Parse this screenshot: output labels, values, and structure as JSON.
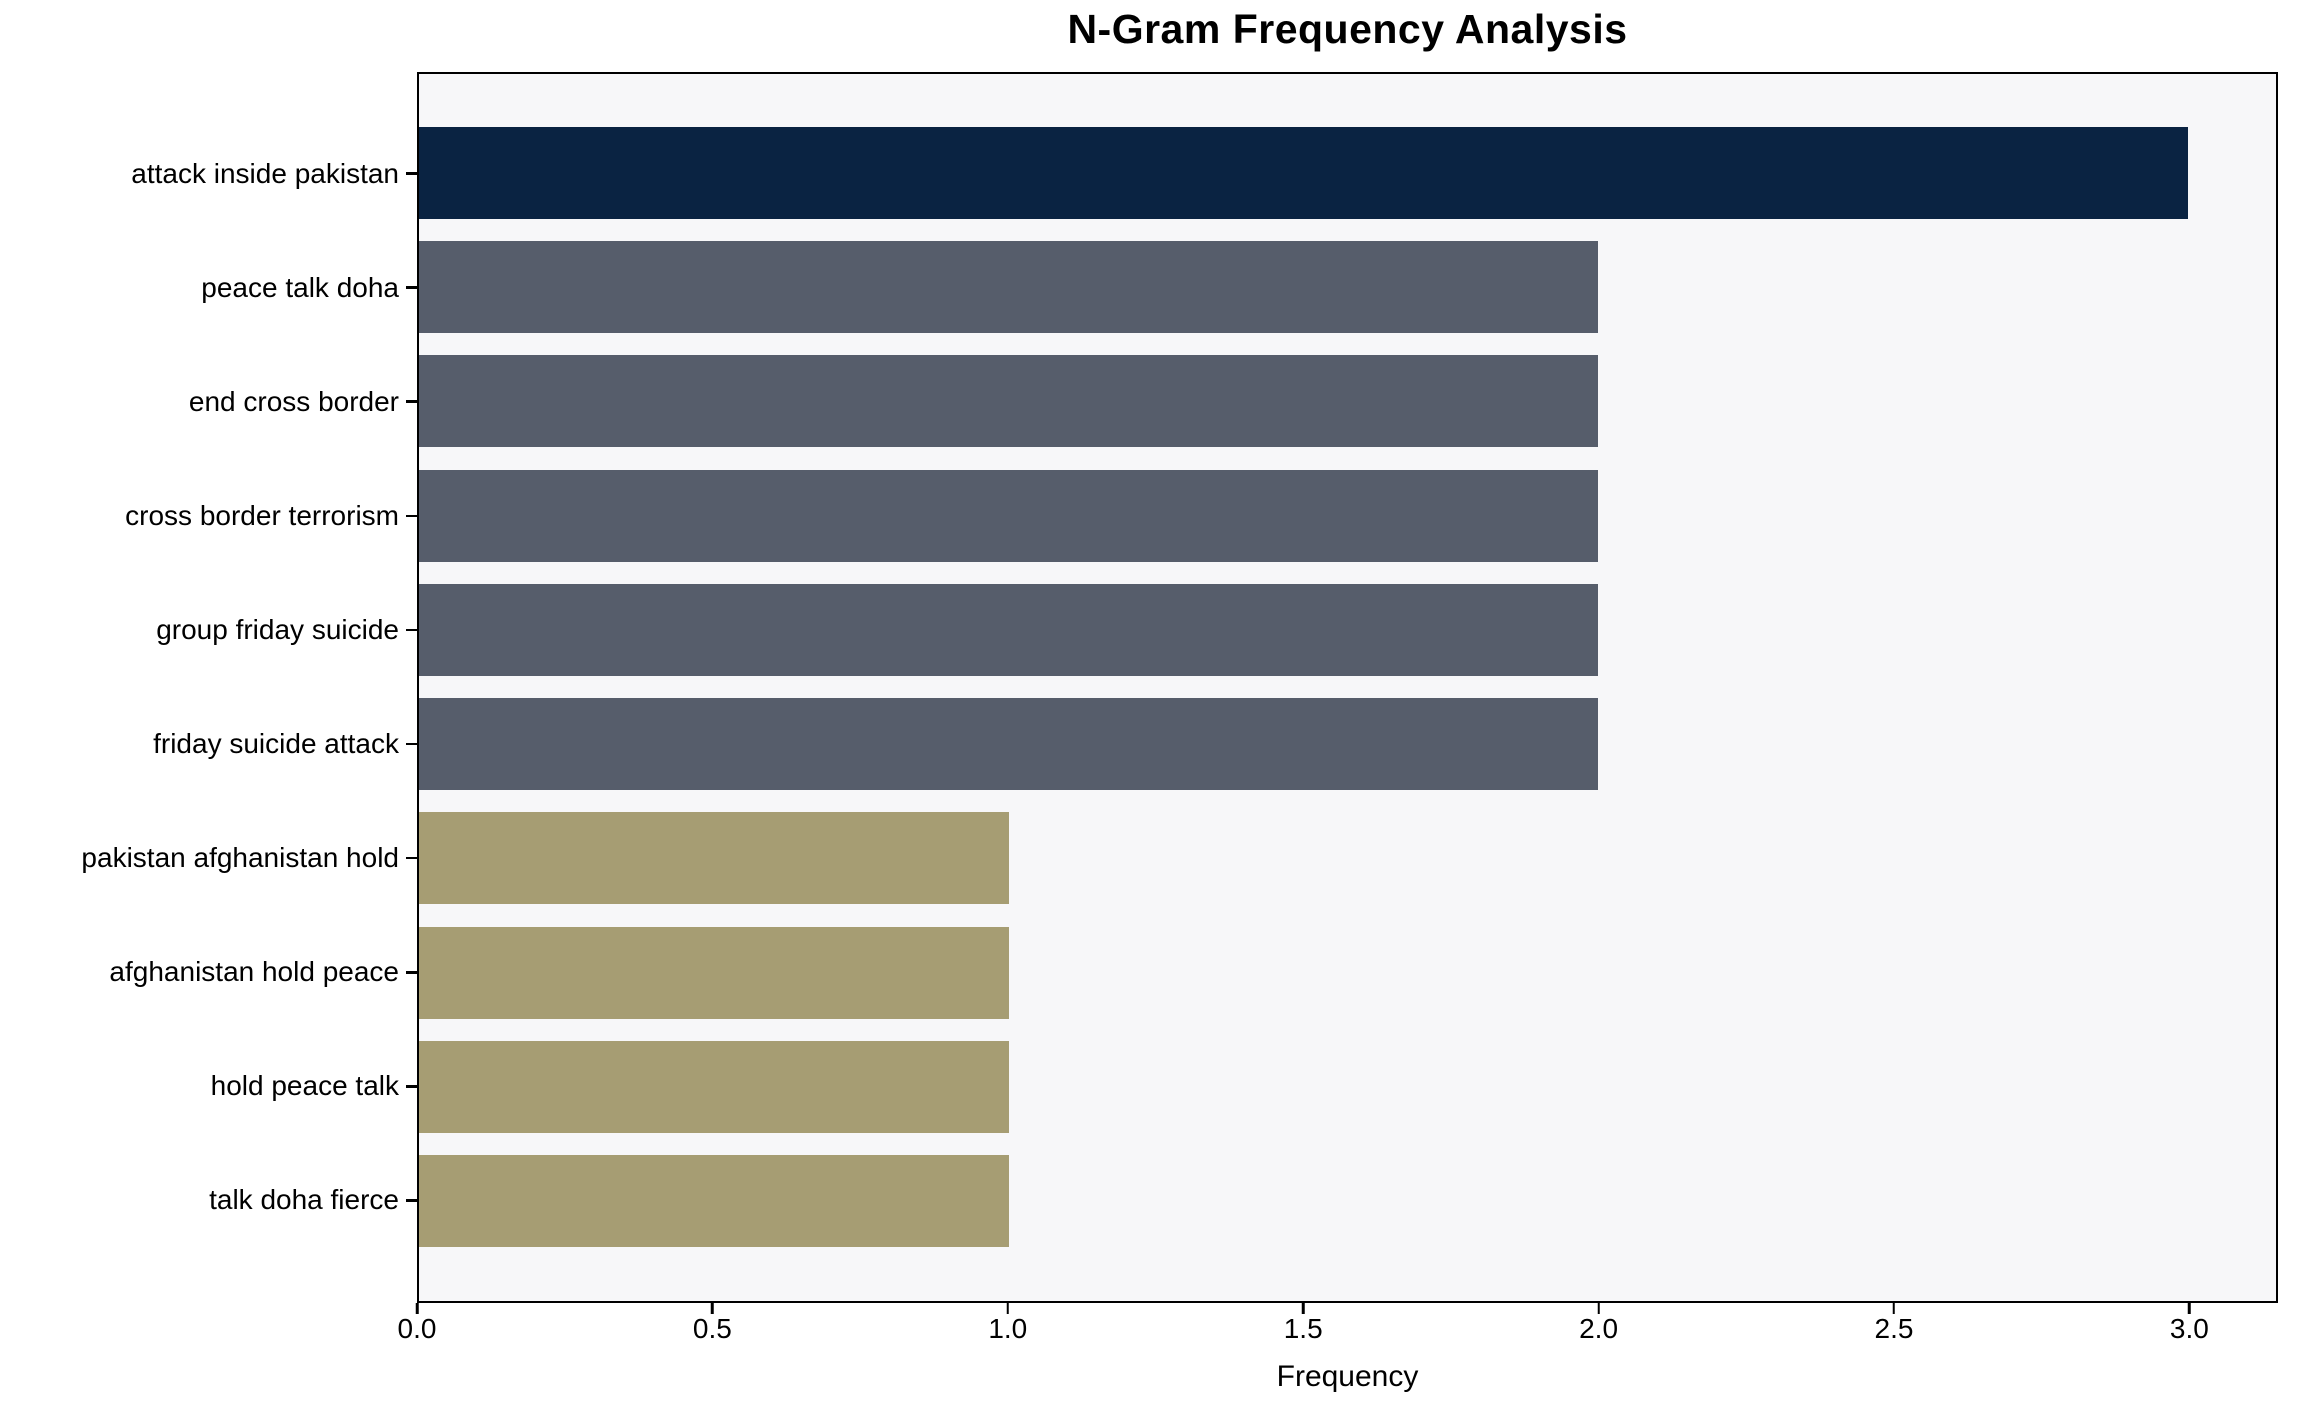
{
  "chart_data": {
    "type": "bar",
    "orientation": "horizontal",
    "title": "N-Gram Frequency Analysis",
    "xlabel": "Frequency",
    "ylabel": "",
    "categories": [
      "attack inside pakistan",
      "peace talk doha",
      "end cross border",
      "cross border terrorism",
      "group friday suicide",
      "friday suicide attack",
      "pakistan afghanistan hold",
      "afghanistan hold peace",
      "hold peace talk",
      "talk doha fierce"
    ],
    "values": [
      3,
      2,
      2,
      2,
      2,
      2,
      1,
      1,
      1,
      1
    ],
    "bar_colors": [
      "#0a2342",
      "#565d6b",
      "#565d6b",
      "#565d6b",
      "#565d6b",
      "#565d6b",
      "#a69d73",
      "#a69d73",
      "#a69d73",
      "#a69d73"
    ],
    "xlim": [
      0,
      3.15
    ],
    "x_ticks": [
      "0.0",
      "0.5",
      "1.0",
      "1.5",
      "2.0",
      "2.5",
      "3.0"
    ],
    "grid": false,
    "legend": false,
    "colors": {
      "plot_background": "#f7f7f9",
      "figure_background": "#ffffff",
      "spine": "#000000",
      "navy": "#0a2342",
      "slate": "#565d6b",
      "khaki": "#a69d73"
    }
  }
}
